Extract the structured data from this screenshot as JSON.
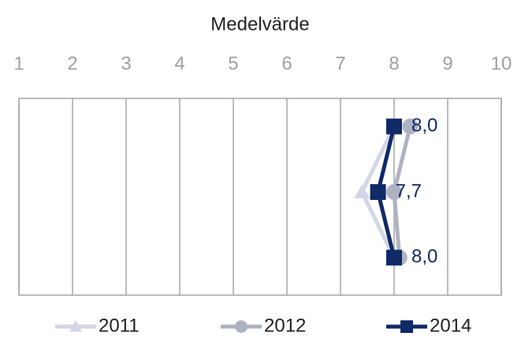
{
  "chart_data": {
    "type": "line",
    "orientation": "horizontal",
    "title": "Medelvärde",
    "categories": [
      null,
      null,
      null
    ],
    "series": [
      {
        "name": "2011",
        "color": "#d3d6e6",
        "marker": "triangle",
        "values": [
          8.0,
          7.4,
          8.0
        ]
      },
      {
        "name": "2012",
        "color": "#aeb3c2",
        "marker": "circle",
        "values": [
          8.3,
          8.0,
          8.1
        ]
      },
      {
        "name": "2014",
        "color": "#0f2a66",
        "marker": "square",
        "values": [
          8.0,
          7.7,
          8.0
        ],
        "value_labels": [
          "8,0",
          "7,7",
          "8,0"
        ]
      }
    ],
    "xlim": [
      1,
      10
    ],
    "xticks": [
      1,
      2,
      3,
      4,
      5,
      6,
      7,
      8,
      9,
      10
    ],
    "grid": true,
    "legend": "bottom"
  }
}
